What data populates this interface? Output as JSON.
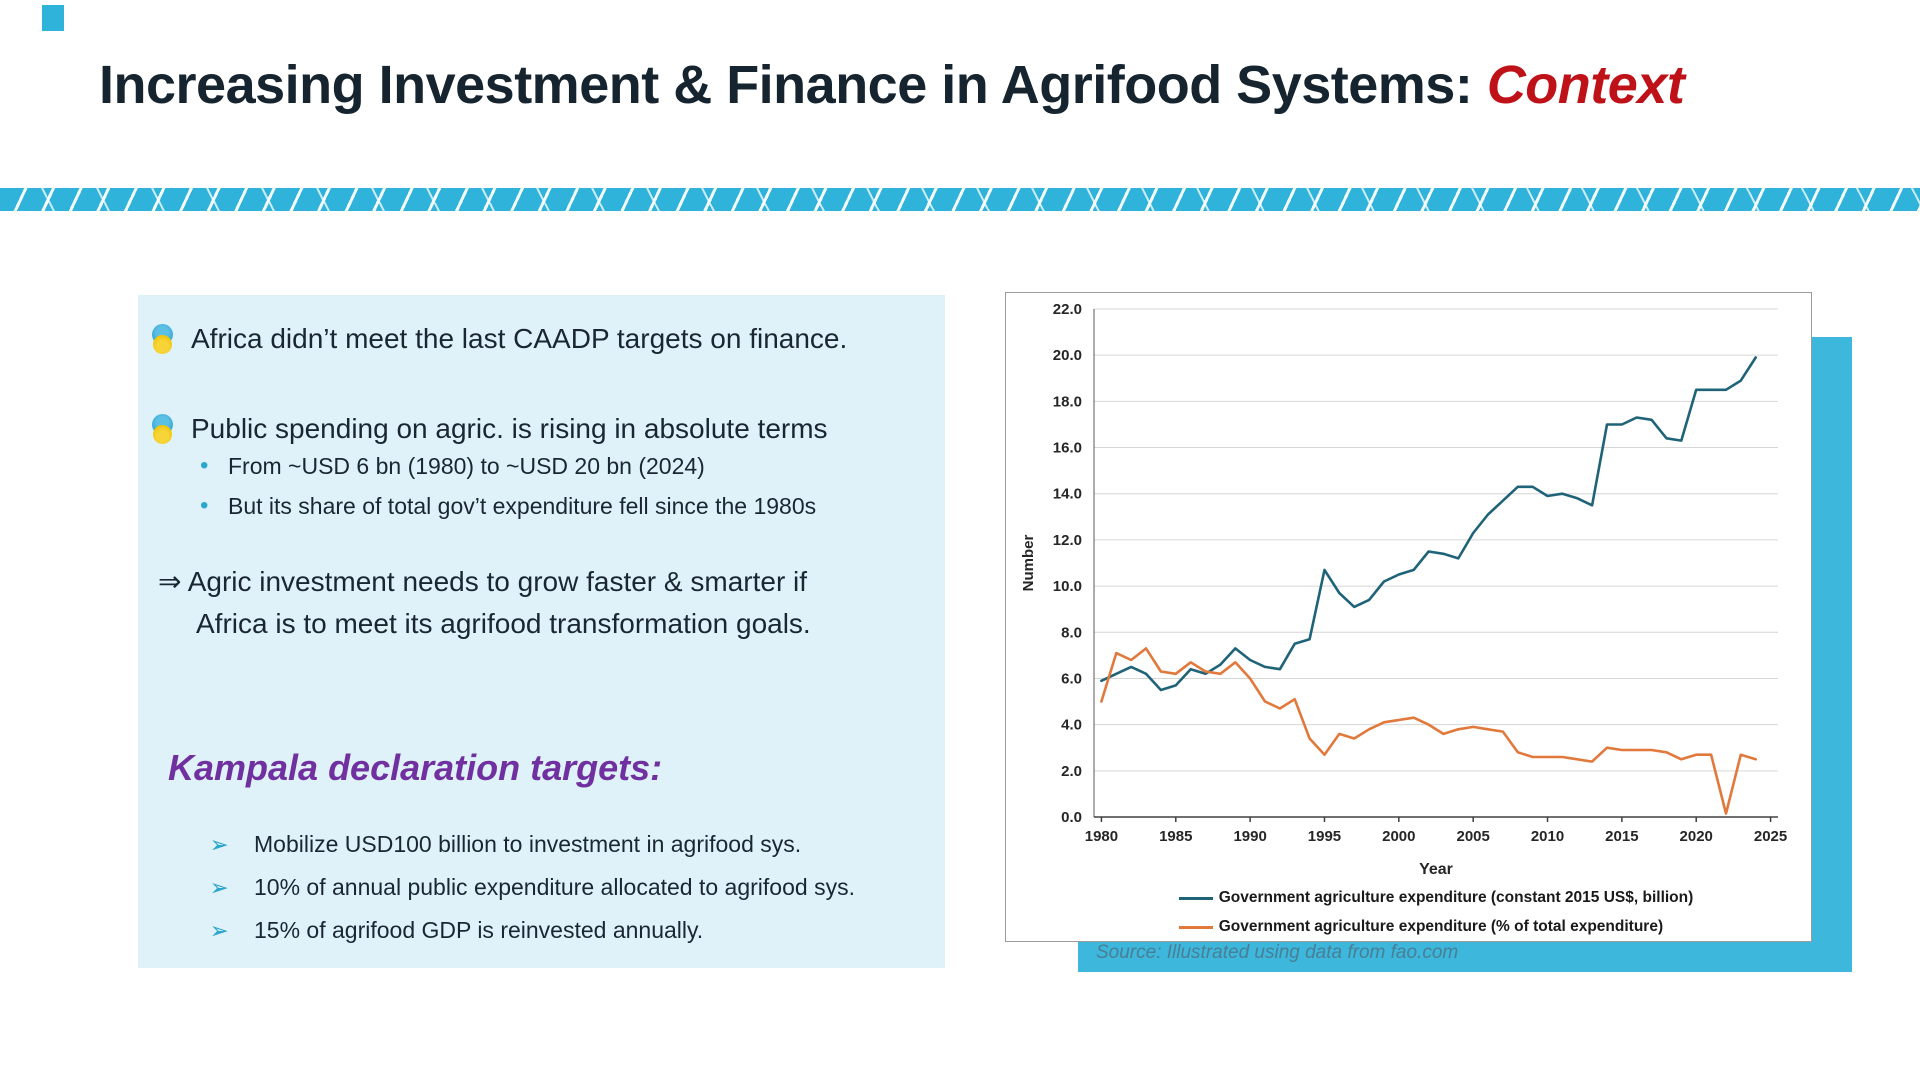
{
  "slide": {
    "title_main": "Increasing Investment & Finance in Agrifood Systems: ",
    "title_accent": "Context",
    "title_color": "#16242f",
    "accent_color": "#bf1218",
    "band_color": "#2fb3db",
    "left_box_bg": "#dff2f9",
    "panel_color": "#3db7dc",
    "kampala_color": "#7030a0"
  },
  "left_box": {
    "bullet1": "Africa didn’t meet the last CAADP targets on finance.",
    "bullet2": "Public spending on agric. is rising in absolute terms",
    "sub_bullets": [
      "From ~USD 6 bn (1980) to ~USD 20 bn (2024)",
      "But its share of total gov’t expenditure fell since the 1980s"
    ],
    "dot_glyph": "•",
    "arrow_line1": "⇒ Agric investment needs to grow faster & smarter if",
    "arrow_line2": "Africa is to meet its agrifood transformation goals.",
    "kampala_heading": "Kampala declaration targets:",
    "arrow_glyph": "➢",
    "kampala_targets": [
      "Mobilize USD100 billion to investment in agrifood sys.",
      "10% of annual public expenditure allocated to agrifood sys.",
      "15% of agrifood GDP is reinvested annually."
    ]
  },
  "chart": {
    "source_note": "Source: Illustrated using data from fao.com"
  },
  "chart_data": {
    "type": "line",
    "title": "",
    "xlabel": "Year",
    "ylabel": "Number",
    "xlim": [
      1979.5,
      2025.5
    ],
    "ylim": [
      0,
      22
    ],
    "ytick_step": 2,
    "xticks": [
      1980,
      1985,
      1990,
      1995,
      2000,
      2005,
      2010,
      2015,
      2020,
      2025
    ],
    "grid": "horizontal",
    "legend_position": "bottom",
    "x": [
      1980,
      1981,
      1982,
      1983,
      1984,
      1985,
      1986,
      1987,
      1988,
      1989,
      1990,
      1991,
      1992,
      1993,
      1994,
      1995,
      1996,
      1997,
      1998,
      1999,
      2000,
      2001,
      2002,
      2003,
      2004,
      2005,
      2006,
      2007,
      2008,
      2009,
      2010,
      2011,
      2012,
      2013,
      2014,
      2015,
      2016,
      2017,
      2018,
      2019,
      2020,
      2021,
      2022,
      2023,
      2024
    ],
    "series": [
      {
        "name": "Government agriculture expenditure (constant 2015 US$, billion)",
        "color": "#1f6379",
        "values": [
          5.9,
          6.2,
          6.5,
          6.2,
          5.5,
          5.7,
          6.4,
          6.2,
          6.6,
          7.3,
          6.8,
          6.5,
          6.4,
          7.5,
          7.7,
          10.7,
          9.7,
          9.1,
          9.4,
          10.2,
          10.5,
          10.7,
          11.5,
          11.4,
          11.2,
          12.3,
          13.1,
          13.7,
          14.3,
          14.3,
          13.9,
          14.0,
          13.8,
          13.5,
          17.0,
          17.0,
          17.3,
          17.2,
          16.4,
          16.3,
          18.5,
          18.5,
          18.5,
          18.9,
          19.9
        ]
      },
      {
        "name": "Government agriculture expenditure (% of total expenditure)",
        "color": "#e2793c",
        "values": [
          5.0,
          7.1,
          6.8,
          7.3,
          6.3,
          6.2,
          6.7,
          6.3,
          6.2,
          6.7,
          6.0,
          5.0,
          4.7,
          5.1,
          3.4,
          2.7,
          3.6,
          3.4,
          3.8,
          4.1,
          4.2,
          4.3,
          4.0,
          3.6,
          3.8,
          3.9,
          3.8,
          3.7,
          2.8,
          2.6,
          2.6,
          2.6,
          2.5,
          2.4,
          3.0,
          2.9,
          2.9,
          2.9,
          2.8,
          2.5,
          2.7,
          2.7,
          0.15,
          2.7,
          2.5
        ]
      }
    ]
  }
}
